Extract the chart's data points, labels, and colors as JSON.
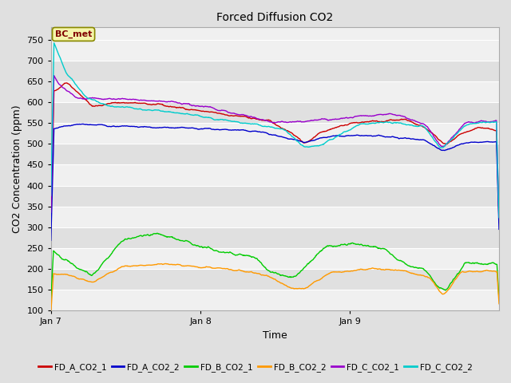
{
  "title": "Forced Diffusion CO2",
  "xlabel": "Time",
  "ylabel": "CO2 Concentration (ppm)",
  "ylim": [
    100,
    780
  ],
  "yticks": [
    100,
    150,
    200,
    250,
    300,
    350,
    400,
    450,
    500,
    550,
    600,
    650,
    700,
    750
  ],
  "xtick_labels": [
    "Jan 7",
    "Jan 8",
    "Jan 9"
  ],
  "xtick_positions": [
    0,
    288,
    576
  ],
  "n_points": 864,
  "annotation_text": "BC_met",
  "colors": {
    "FD_A_CO2_1": "#cc0000",
    "FD_A_CO2_2": "#0000cc",
    "FD_B_CO2_1": "#00cc00",
    "FD_B_CO2_2": "#ff9900",
    "FD_C_CO2_1": "#9900cc",
    "FD_C_CO2_2": "#00cccc"
  },
  "legend_entries": [
    "FD_A_CO2_1",
    "FD_A_CO2_2",
    "FD_B_CO2_1",
    "FD_B_CO2_2",
    "FD_C_CO2_1",
    "FD_C_CO2_2"
  ],
  "bg_color": "#e0e0e0",
  "plot_bg_color": "#f0f0f0",
  "band_color_light": "#f0f0f0",
  "band_color_dark": "#e0e0e0",
  "linewidth": 1.0
}
